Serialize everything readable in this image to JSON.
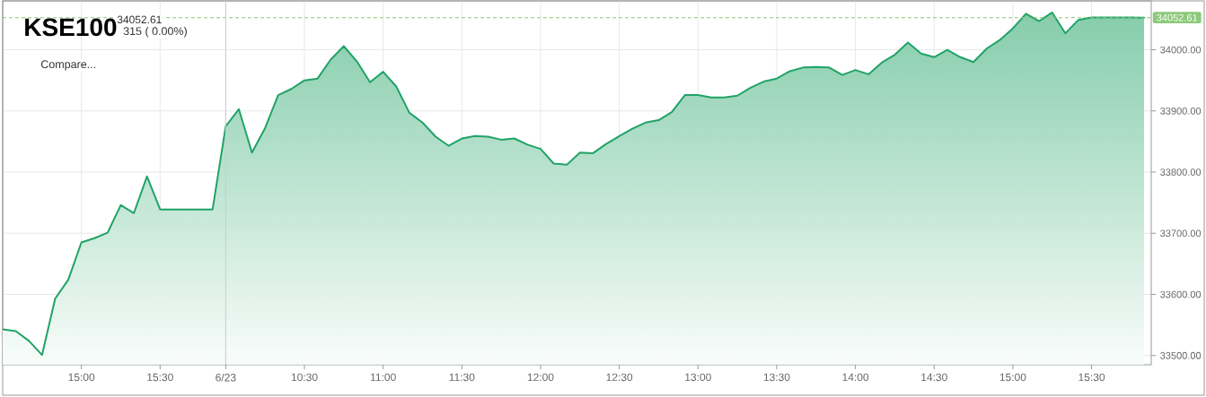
{
  "chart_data": {
    "type": "area",
    "title": "KSE100",
    "subtitle": "34052.61",
    "annotations": [
      "315 ( 0.00%)",
      "Compare..."
    ],
    "categories": [
      null,
      null,
      null,
      null,
      null,
      null,
      "15:00",
      null,
      null,
      null,
      null,
      null,
      "15:30",
      null,
      null,
      null,
      null,
      "6/23",
      null,
      null,
      null,
      null,
      null,
      "10:30",
      null,
      null,
      null,
      null,
      null,
      "11:00",
      null,
      null,
      null,
      null,
      null,
      "11:30",
      null,
      null,
      null,
      null,
      null,
      "12:00",
      null,
      null,
      null,
      null,
      null,
      "12:30",
      null,
      null,
      null,
      null,
      null,
      "13:00",
      null,
      null,
      null,
      null,
      null,
      "13:30",
      null,
      null,
      null,
      null,
      null,
      "14:00",
      null,
      null,
      null,
      null,
      null,
      "14:30",
      null,
      null,
      null,
      null,
      null,
      "15:00",
      null,
      null,
      null,
      null,
      null,
      "15:30",
      null,
      null,
      null,
      null
    ],
    "values": [
      33543,
      33540,
      33524,
      33501,
      33593,
      33624,
      33685,
      33692,
      33701,
      33746,
      33733,
      33793,
      33739,
      33739,
      33739,
      33739,
      33739,
      33875,
      33903,
      33832,
      33872,
      33926,
      33936,
      33950,
      33953,
      33984,
      34006,
      33981,
      33947,
      33964,
      33940,
      33897,
      33881,
      33858,
      33843,
      33855,
      33859,
      33858,
      33853,
      33855,
      33845,
      33838,
      33814,
      33812,
      33832,
      33831,
      33846,
      33859,
      33871,
      33881,
      33885,
      33898,
      33926,
      33926,
      33922,
      33922,
      33925,
      33938,
      33948,
      33953,
      33965,
      33971,
      33972,
      33971,
      33959,
      33967,
      33960,
      33979,
      33992,
      34012,
      33994,
      33988,
      34000,
      33988,
      33980,
      34002,
      34016,
      34035,
      34059,
      34047,
      34061,
      34027,
      34049,
      34053,
      34053,
      34053,
      34053,
      34052.61
    ],
    "color": "#21a366",
    "line_style": "solid",
    "ylim": [
      33485,
      34080
    ],
    "yticks": [
      {
        "value": 33500,
        "label": "33500.00"
      },
      {
        "value": 33600,
        "label": "33600.00"
      },
      {
        "value": 33700,
        "label": "33700.00"
      },
      {
        "value": 33800,
        "label": "33800.00"
      },
      {
        "value": 33900,
        "label": "33900.00"
      },
      {
        "value": 34000,
        "label": "34000.00"
      }
    ],
    "grid": true,
    "ref_lines": [
      {
        "axis": "y",
        "value": 34052.61,
        "label": "34052.61",
        "color": "#8cc97a",
        "line_style": "dashed"
      },
      {
        "axis": "x",
        "value": "6/23",
        "color": "#cccccc"
      }
    ]
  }
}
